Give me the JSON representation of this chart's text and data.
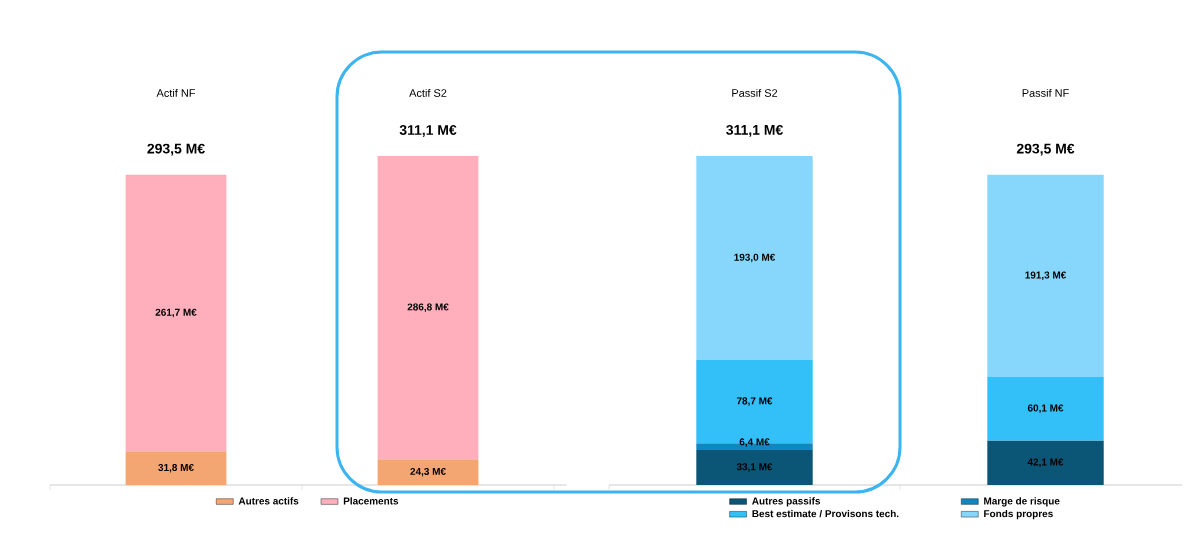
{
  "chart_data": [
    {
      "type": "bar",
      "stacked": true,
      "categories": [
        "Actif NF",
        "Actif S2"
      ],
      "series": [
        {
          "name": "Autres actifs",
          "color": "#f4a672",
          "values": [
            31.8,
            24.3
          ],
          "value_labels": [
            "31,8 M€",
            "24,3 M€"
          ]
        },
        {
          "name": "Placements",
          "color": "#ffaebc",
          "values": [
            261.7,
            286.8
          ],
          "value_labels": [
            "261,7 M€",
            "286,8 M€"
          ]
        }
      ],
      "totals": [
        "293,5 M€",
        "311,1 M€"
      ],
      "legend": "bottom"
    },
    {
      "type": "bar",
      "stacked": true,
      "categories": [
        "Passif S2",
        "Passif NF"
      ],
      "series": [
        {
          "name": "Autres passifs",
          "color": "#0b5576",
          "values": [
            33.1,
            42.1
          ],
          "value_labels": [
            "33,1 M€",
            "42,1 M€"
          ]
        },
        {
          "name": "Marge de risque",
          "color": "#1286c0",
          "values": [
            6.4,
            null
          ],
          "value_labels": [
            "6,4 M€",
            null
          ]
        },
        {
          "name": "Best estimate / Provisons tech.",
          "color": "#33bff7",
          "values": [
            78.7,
            60.1
          ],
          "value_labels": [
            "78,7 M€",
            "60,1 M€"
          ]
        },
        {
          "name": "Fonds propres",
          "color": "#87d7fc",
          "values": [
            193.0,
            191.3
          ],
          "value_labels": [
            "193,0 M€",
            "191,3 M€"
          ]
        }
      ],
      "totals": [
        "311,1 M€",
        "293,5 M€"
      ],
      "legend": "bottom"
    }
  ]
}
